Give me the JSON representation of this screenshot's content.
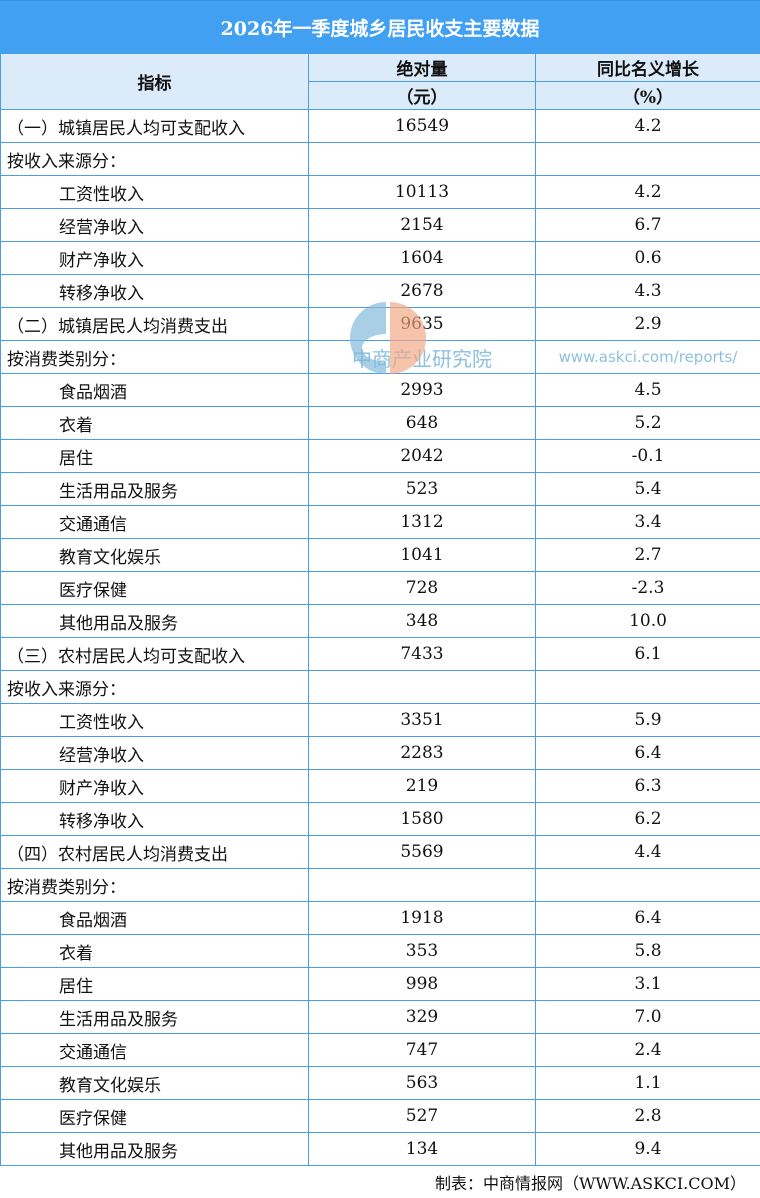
{
  "title": "2026年一季度城乡居民收支主要数据",
  "headers": {
    "indicator": "指标",
    "amount": "绝对量",
    "amount_unit": "（元）",
    "growth": "同比名义增长",
    "growth_unit": "（%）"
  },
  "rows": [
    {
      "label": "（一）城镇居民人均可支配收入",
      "value": "16549",
      "growth": "4.2",
      "level": 0
    },
    {
      "label": "按收入来源分：",
      "value": "",
      "growth": "",
      "level": 0
    },
    {
      "label": "工资性收入",
      "value": "10113",
      "growth": "4.2",
      "level": 1
    },
    {
      "label": "经营净收入",
      "value": "2154",
      "growth": "6.7",
      "level": 1
    },
    {
      "label": "财产净收入",
      "value": "1604",
      "growth": "0.6",
      "level": 1
    },
    {
      "label": "转移净收入",
      "value": "2678",
      "growth": "4.3",
      "level": 1
    },
    {
      "label": "（二）城镇居民人均消费支出",
      "value": "9635",
      "growth": "2.9",
      "level": 0
    },
    {
      "label": "按消费类别分：",
      "value": "",
      "growth": "",
      "level": 0
    },
    {
      "label": "食品烟酒",
      "value": "2993",
      "growth": "4.5",
      "level": 1
    },
    {
      "label": "衣着",
      "value": "648",
      "growth": "5.2",
      "level": 1
    },
    {
      "label": "居住",
      "value": "2042",
      "growth": "-0.1",
      "level": 1
    },
    {
      "label": "生活用品及服务",
      "value": "523",
      "growth": "5.4",
      "level": 1
    },
    {
      "label": "交通通信",
      "value": "1312",
      "growth": "3.4",
      "level": 1
    },
    {
      "label": "教育文化娱乐",
      "value": "1041",
      "growth": "2.7",
      "level": 1
    },
    {
      "label": "医疗保健",
      "value": "728",
      "growth": "-2.3",
      "level": 1
    },
    {
      "label": "其他用品及服务",
      "value": "348",
      "growth": "10.0",
      "level": 1
    },
    {
      "label": "（三）农村居民人均可支配收入",
      "value": "7433",
      "growth": "6.1",
      "level": 0
    },
    {
      "label": "按收入来源分：",
      "value": "",
      "growth": "",
      "level": 0
    },
    {
      "label": "工资性收入",
      "value": "3351",
      "growth": "5.9",
      "level": 1
    },
    {
      "label": "经营净收入",
      "value": "2283",
      "growth": "6.4",
      "level": 1
    },
    {
      "label": "财产净收入",
      "value": "219",
      "growth": "6.3",
      "level": 1
    },
    {
      "label": "转移净收入",
      "value": "1580",
      "growth": "6.2",
      "level": 1
    },
    {
      "label": "（四）农村居民人均消费支出",
      "value": "5569",
      "growth": "4.4",
      "level": 0
    },
    {
      "label": "按消费类别分：",
      "value": "",
      "growth": "",
      "level": 0
    },
    {
      "label": "食品烟酒",
      "value": "1918",
      "growth": "6.4",
      "level": 1
    },
    {
      "label": "衣着",
      "value": "353",
      "growth": "5.8",
      "level": 1
    },
    {
      "label": "居住",
      "value": "998",
      "growth": "3.1",
      "level": 1
    },
    {
      "label": "生活用品及服务",
      "value": "329",
      "growth": "7.0",
      "level": 1
    },
    {
      "label": "交通通信",
      "value": "747",
      "growth": "2.4",
      "level": 1
    },
    {
      "label": "教育文化娱乐",
      "value": "563",
      "growth": "1.1",
      "level": 1
    },
    {
      "label": "医疗保健",
      "value": "527",
      "growth": "2.8",
      "level": 1
    },
    {
      "label": "其他用品及服务",
      "value": "134",
      "growth": "9.4",
      "level": 1
    }
  ],
  "footer": "制表：中商情报网（WWW.ASKCI.COM）",
  "watermark": {
    "name": "中商产业研究院",
    "url": "www.askci.com/reports/"
  },
  "colors": {
    "title_bg": "#42a0f2",
    "header_bg": "#dcebfa",
    "border": "#4b9cea"
  }
}
